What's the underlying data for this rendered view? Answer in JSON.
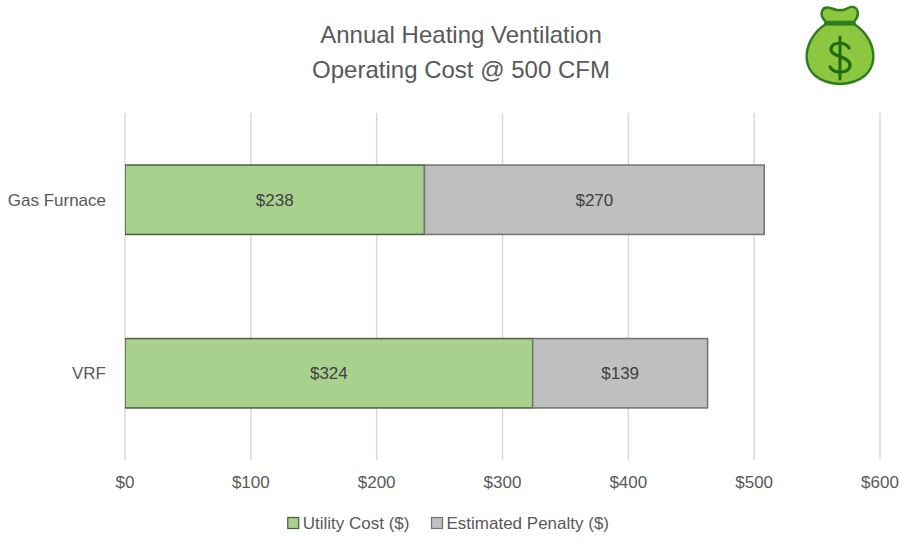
{
  "chart_data": {
    "type": "bar",
    "orientation": "horizontal",
    "stacked": true,
    "data_labels": true,
    "grid": true,
    "legend": "bottom",
    "title": "Annual Heating Ventilation\nOperating Cost @ 500 CFM",
    "categories": [
      "Gas Furnace",
      "VRF"
    ],
    "series": [
      {
        "name": "Utility Cost ($)",
        "color": "#a9d18e",
        "values": [
          238,
          324
        ],
        "value_labels": [
          "$238",
          "$324"
        ]
      },
      {
        "name": "Estimated Penalty ($)",
        "color": "#bfbfbf",
        "values": [
          270,
          139
        ],
        "value_labels": [
          "$270",
          "$139"
        ]
      }
    ],
    "xlim": [
      0,
      600
    ],
    "xticks": [
      {
        "value": 0,
        "label": "$0"
      },
      {
        "value": 100,
        "label": "$100"
      },
      {
        "value": 200,
        "label": "$200"
      },
      {
        "value": 300,
        "label": "$300"
      },
      {
        "value": 400,
        "label": "$400"
      },
      {
        "value": 500,
        "label": "$500"
      },
      {
        "value": 600,
        "label": "$600"
      }
    ]
  }
}
